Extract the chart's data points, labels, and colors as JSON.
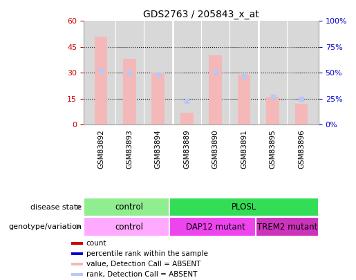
{
  "title": "GDS2763 / 205843_x_at",
  "samples": [
    "GSM83892",
    "GSM83893",
    "GSM83894",
    "GSM83889",
    "GSM83890",
    "GSM83891",
    "GSM83895",
    "GSM83896"
  ],
  "bar_values": [
    51,
    38,
    30,
    7,
    40,
    29,
    16,
    12
  ],
  "rank_values": [
    52,
    50,
    48,
    23,
    51,
    47,
    27,
    25
  ],
  "bar_color_absent": "#f4b8b8",
  "rank_color_absent": "#b8c8f4",
  "ylim_left": [
    0,
    60
  ],
  "ylim_right": [
    0,
    100
  ],
  "yticks_left": [
    0,
    15,
    30,
    45,
    60
  ],
  "ytick_labels_left": [
    "0",
    "15",
    "30",
    "45",
    "60"
  ],
  "yticks_right": [
    0,
    25,
    50,
    75,
    100
  ],
  "ytick_labels_right": [
    "0%",
    "25%",
    "50%",
    "75%",
    "100%"
  ],
  "disease_state_groups": [
    {
      "label": "control",
      "start": 0,
      "end": 2,
      "color": "#90ee90"
    },
    {
      "label": "PLOSL",
      "start": 3,
      "end": 7,
      "color": "#33dd55"
    }
  ],
  "genotype_groups": [
    {
      "label": "control",
      "start": 0,
      "end": 2,
      "color": "#ffaaff"
    },
    {
      "label": "DAP12 mutant",
      "start": 3,
      "end": 5,
      "color": "#ee44ee"
    },
    {
      "label": "TREM2 mutant",
      "start": 6,
      "end": 7,
      "color": "#cc33bb"
    }
  ],
  "legend_items": [
    {
      "color": "#cc0000",
      "label": "count"
    },
    {
      "color": "#0000cc",
      "label": "percentile rank within the sample"
    },
    {
      "color": "#f4b8b8",
      "label": "value, Detection Call = ABSENT"
    },
    {
      "color": "#b8c8f4",
      "label": "rank, Detection Call = ABSENT"
    }
  ],
  "bar_width": 0.45,
  "tick_color_left": "#cc0000",
  "tick_color_right": "#0000cc",
  "bg_color": "#d8d8d8",
  "spine_color": "#aaaaaa"
}
